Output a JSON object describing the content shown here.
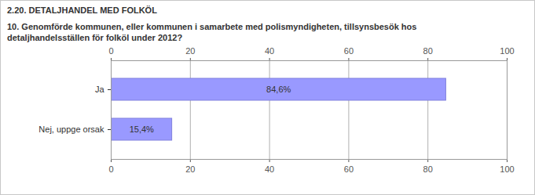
{
  "chart_data": {
    "type": "bar",
    "title": "2.20. DETALJHANDEL MED FOLKÖL",
    "subtitle": "10. Genomförde kommunen, eller kommunen i samarbete med polismyndigheten, tillsynsbesök hos detaljhandelsställen för folköl under 2012?",
    "categories": [
      "Ja",
      "Nej, uppge orsak"
    ],
    "values": [
      84.6,
      15.4
    ],
    "value_labels": [
      "84,6%",
      "15,4%"
    ],
    "color": "#9999ff",
    "orientation": "horizontal",
    "data_labels": true,
    "xlim": [
      0,
      100
    ],
    "xticks": [
      0,
      20,
      40,
      60,
      80,
      100
    ],
    "grid": true
  }
}
